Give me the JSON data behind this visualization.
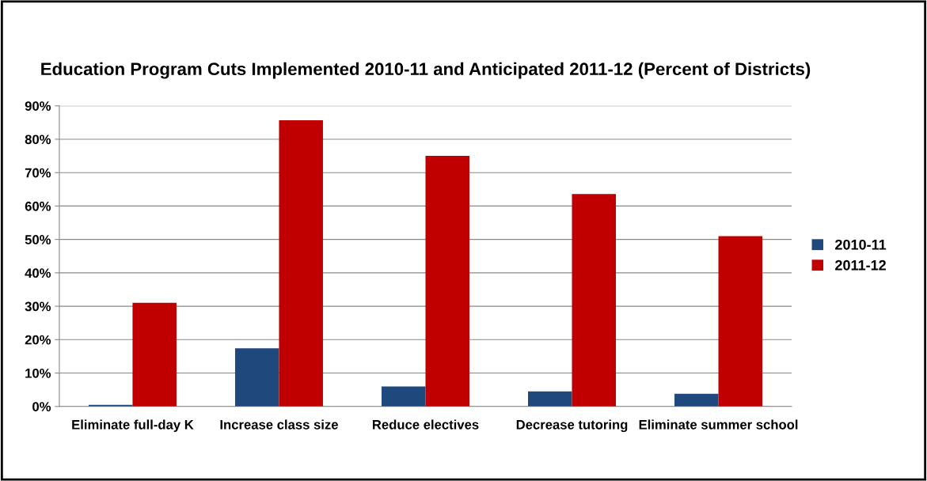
{
  "chart_data": {
    "type": "bar",
    "title": "Education Program Cuts Implemented 2010-11 and Anticipated 2011-12 (Percent of Districts)",
    "categories": [
      "Eliminate full-day K",
      "Increase class size",
      "Reduce electives",
      "Decrease tutoring",
      "Eliminate summer school"
    ],
    "series": [
      {
        "name": "2010-11",
        "color": "#1f497d",
        "values": [
          0.5,
          17.4,
          6,
          4.5,
          3.8
        ]
      },
      {
        "name": "2011-12",
        "color": "#c00000",
        "values": [
          31,
          85.7,
          75,
          63.6,
          51
        ]
      }
    ],
    "ylim": [
      0,
      90
    ],
    "yticks": [
      {
        "value": 0,
        "label": "0%"
      },
      {
        "value": 10,
        "label": "10%"
      },
      {
        "value": 20,
        "label": "20%"
      },
      {
        "value": 30,
        "label": "30%"
      },
      {
        "value": 40,
        "label": "40%"
      },
      {
        "value": 50,
        "label": "50%"
      },
      {
        "value": 60,
        "label": "60%"
      },
      {
        "value": 70,
        "label": "70%"
      },
      {
        "value": 80,
        "label": "80%"
      },
      {
        "value": 90,
        "label": "90%"
      }
    ],
    "grid": "y",
    "legend": "right"
  }
}
